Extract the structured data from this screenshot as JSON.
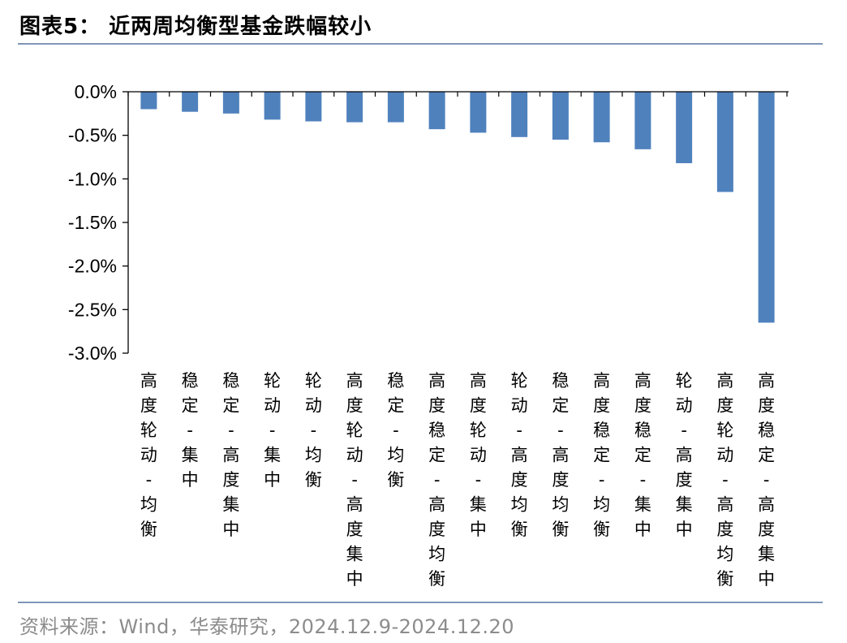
{
  "header": {
    "title": "图表5：  近两周均衡型基金跌幅较小"
  },
  "footer": {
    "source": "资料来源：Wind，华泰研究，2024.12.9-2024.12.20"
  },
  "colors": {
    "bar": "#4f81bd",
    "axis": "#000000",
    "rule": "#7f96b8"
  },
  "chart_data": {
    "type": "bar",
    "title": "近两周均衡型基金跌幅较小",
    "xlabel": "",
    "ylabel": "",
    "ylim": [
      -3.0,
      0.0
    ],
    "yticks": [
      0.0,
      -0.5,
      -1.0,
      -1.5,
      -2.0,
      -2.5,
      -3.0
    ],
    "ytick_labels": [
      "0.0%",
      "-0.5%",
      "-1.0%",
      "-1.5%",
      "-2.0%",
      "-2.5%",
      "-3.0%"
    ],
    "grid": false,
    "legend": "none",
    "categories": [
      "高度轮动-均衡",
      "稳定-集中",
      "稳定-高度集中",
      "轮动-集中",
      "轮动-均衡",
      "高度轮动-高度集中",
      "稳定-均衡",
      "高度稳定-高度均衡",
      "高度轮动-集中",
      "轮动-高度均衡",
      "稳定-高度均衡",
      "高度稳定-均衡",
      "高度稳定-集中",
      "轮动-高度集中",
      "高度轮动-高度均衡",
      "高度稳定-高度集中"
    ],
    "values": [
      -0.2,
      -0.23,
      -0.25,
      -0.32,
      -0.34,
      -0.35,
      -0.35,
      -0.43,
      -0.47,
      -0.52,
      -0.55,
      -0.58,
      -0.66,
      -0.82,
      -1.15,
      -2.65
    ]
  }
}
